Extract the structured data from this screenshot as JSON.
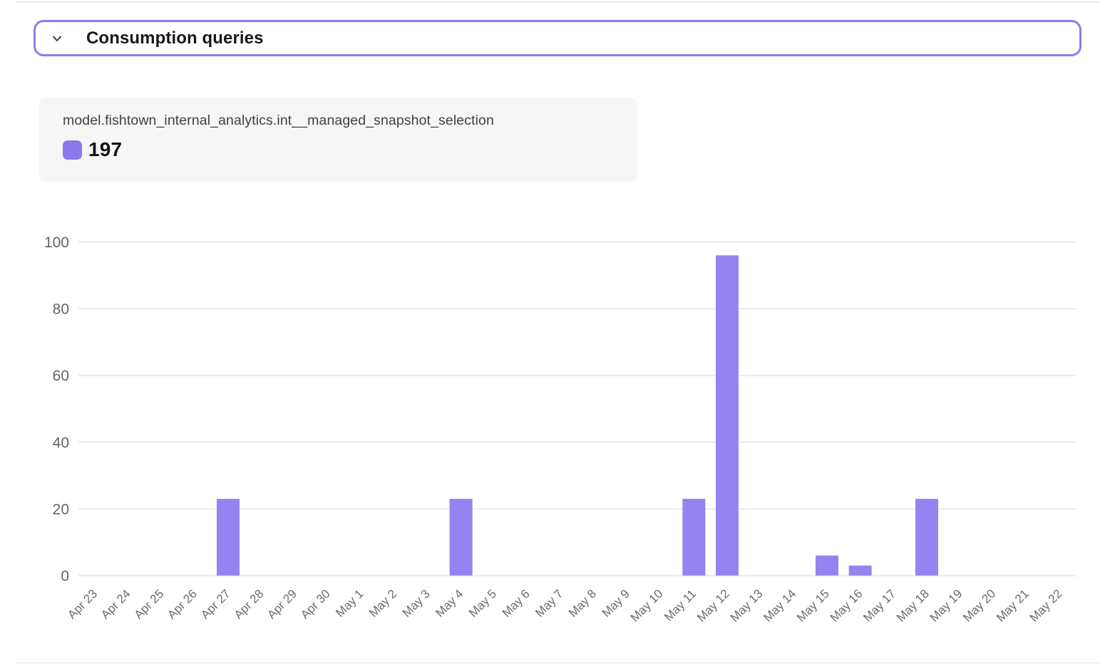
{
  "page": {
    "accent_color": "#8e7bf3"
  },
  "header": {
    "title": "Consumption queries",
    "chevron_icon": "chevron-down",
    "border_color": "#8e7bf3"
  },
  "tooltip": {
    "series_name": "model.fishtown_internal_analytics.int__managed_snapshot_selection",
    "value": "197",
    "swatch_color": "#8b79ef",
    "background": "#f6f6f7"
  },
  "chart_data": {
    "type": "bar",
    "title": "",
    "xlabel": "",
    "ylabel": "",
    "categories": [
      "Apr 23",
      "Apr 24",
      "Apr 25",
      "Apr 26",
      "Apr 27",
      "Apr 28",
      "Apr 29",
      "Apr 30",
      "May 1",
      "May 2",
      "May 3",
      "May 4",
      "May 5",
      "May 6",
      "May 7",
      "May 8",
      "May 9",
      "May 10",
      "May 11",
      "May 12",
      "May 13",
      "May 14",
      "May 15",
      "May 16",
      "May 17",
      "May 18",
      "May 19",
      "May 20",
      "May 21",
      "May 22"
    ],
    "series": [
      {
        "name": "model.fishtown_internal_analytics.int__managed_snapshot_selection",
        "total": 197,
        "values": [
          0,
          0,
          0,
          0,
          23,
          0,
          0,
          0,
          0,
          0,
          0,
          23,
          0,
          0,
          0,
          0,
          0,
          0,
          23,
          96,
          0,
          0,
          6,
          3,
          0,
          23,
          0,
          0,
          0,
          0
        ]
      }
    ],
    "ylim": [
      0,
      100
    ],
    "yticks": [
      0,
      20,
      40,
      60,
      80,
      100
    ],
    "grid": true,
    "x_label_rotation": -45,
    "bar_color": "#9583f2",
    "gridline_color": "#eaeaea",
    "ytick_color": "#646464",
    "xtick_color": "#6c6c6c",
    "legend_position": "top-left-card"
  }
}
